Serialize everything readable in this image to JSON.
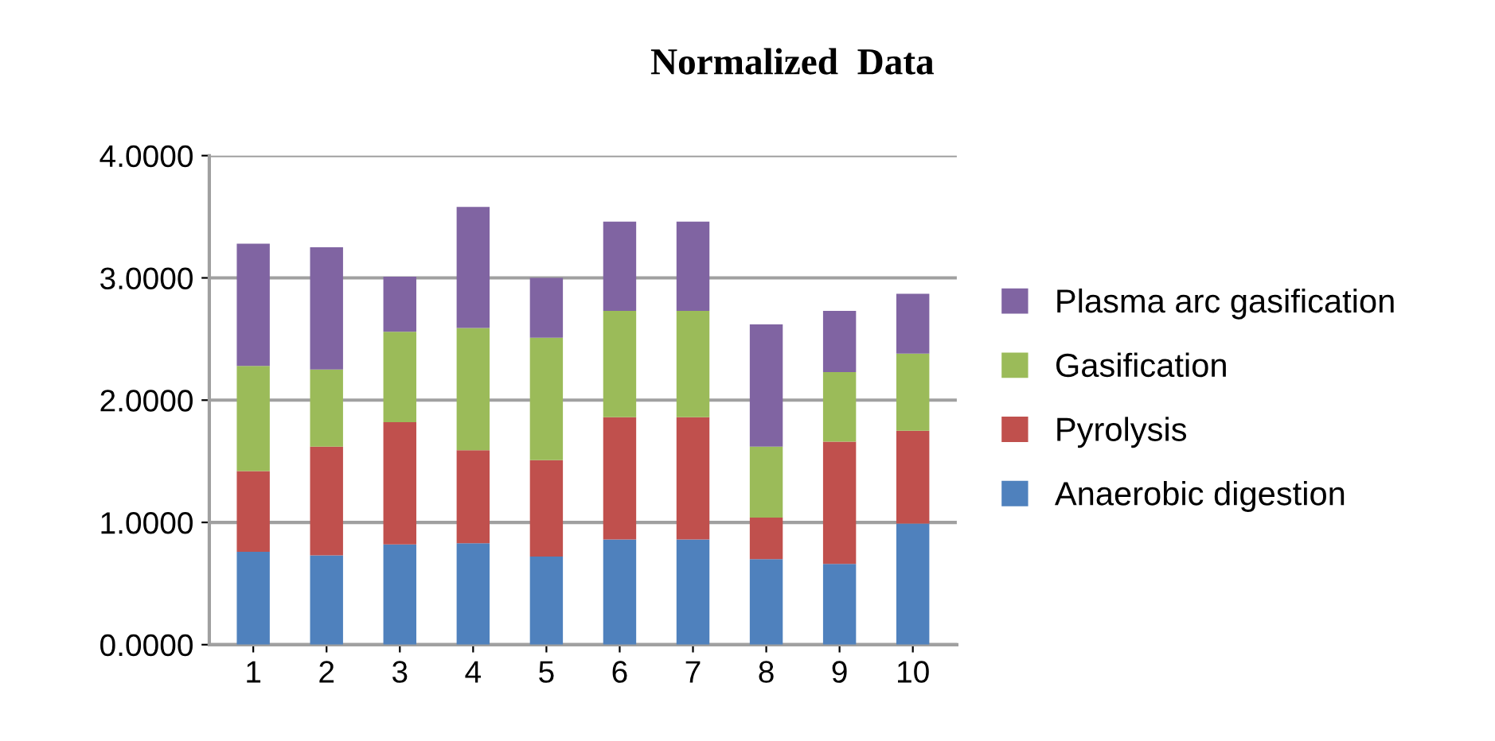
{
  "chart_data": {
    "type": "bar",
    "title": "Normalized  Data",
    "stacked": true,
    "categories": [
      "1",
      "2",
      "3",
      "4",
      "5",
      "6",
      "7",
      "8",
      "9",
      "10"
    ],
    "series": [
      {
        "name": "Anaerobic digestion",
        "color": "#4f81bd",
        "values": [
          0.76,
          0.73,
          0.82,
          0.83,
          0.72,
          0.86,
          0.86,
          0.7,
          0.66,
          0.99
        ]
      },
      {
        "name": "Pyrolysis",
        "color": "#c0504d",
        "values": [
          0.66,
          0.89,
          1.0,
          0.76,
          0.79,
          1.0,
          1.0,
          0.34,
          1.0,
          0.76
        ]
      },
      {
        "name": "Gasification",
        "color": "#9bbb59",
        "values": [
          0.86,
          0.63,
          0.74,
          1.0,
          1.0,
          0.87,
          0.87,
          0.58,
          0.57,
          0.63
        ]
      },
      {
        "name": "Plasma arc gasification",
        "color": "#8064a2",
        "values": [
          1.0,
          1.0,
          0.45,
          0.99,
          0.49,
          0.73,
          0.73,
          1.0,
          0.5,
          0.49
        ]
      }
    ],
    "ylim": [
      0,
      4
    ],
    "yticks": [
      {
        "value": 0,
        "label": "0.0000"
      },
      {
        "value": 1,
        "label": "1.0000"
      },
      {
        "value": 2,
        "label": "2.0000"
      },
      {
        "value": 3,
        "label": "3.0000"
      },
      {
        "value": 4,
        "label": "4.0000"
      }
    ],
    "grid": "y",
    "legend": "right"
  }
}
